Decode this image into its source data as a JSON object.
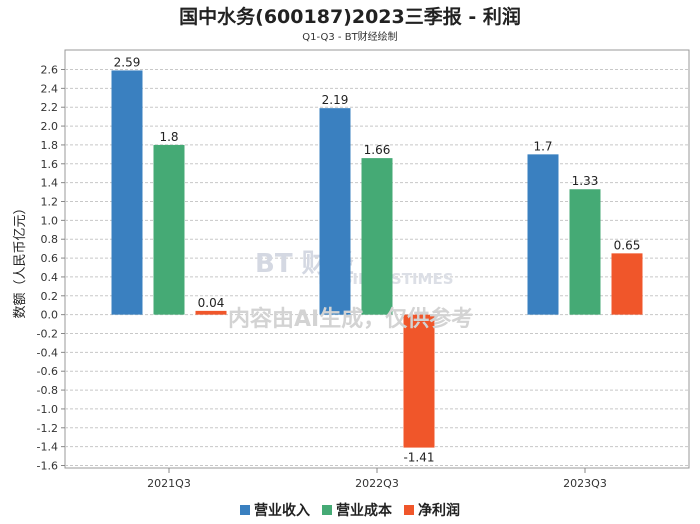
{
  "header": {
    "title": "国中水务(600187)2023三季报 - 利润",
    "subtitle": "Q1-Q3 - BT财经绘制"
  },
  "watermark": {
    "brand": "BT 财经",
    "brand_en": "BUSINESSTIMES",
    "notice": "内容由AI生成，仅供参考"
  },
  "chart_data": {
    "type": "bar",
    "categories": [
      "2021Q3",
      "2022Q3",
      "2023Q3"
    ],
    "series": [
      {
        "name": "营业收入",
        "color": "#3a80c0",
        "values": [
          2.59,
          2.19,
          1.7
        ]
      },
      {
        "name": "营业成本",
        "color": "#45aa75",
        "values": [
          1.8,
          1.66,
          1.33
        ]
      },
      {
        "name": "净利润",
        "color": "#f0562a",
        "values": [
          0.04,
          -1.41,
          0.65
        ]
      }
    ],
    "value_labels": [
      [
        "2.59",
        "1.8",
        "0.04"
      ],
      [
        "2.19",
        "1.66",
        "-1.41"
      ],
      [
        "1.7",
        "1.33",
        "0.65"
      ]
    ],
    "ylabel": "数额（人民币亿元）",
    "ylim": [
      -1.6,
      2.7
    ],
    "yticks": [
      "2.6",
      "2.4",
      "2.2",
      "2.0",
      "1.8",
      "1.6",
      "1.4",
      "1.2",
      "1.0",
      "0.8",
      "0.6",
      "0.4",
      "0.2",
      "0.0",
      "-0.2",
      "-0.4",
      "-0.6",
      "-0.8",
      "-1.0",
      "-1.2",
      "-1.4",
      "-1.6"
    ],
    "ytick_values": [
      2.6,
      2.4,
      2.2,
      2.0,
      1.8,
      1.6,
      1.4,
      1.2,
      1.0,
      0.8,
      0.6,
      0.4,
      0.2,
      0.0,
      -0.2,
      -0.4,
      -0.6,
      -0.8,
      -1.0,
      -1.2,
      -1.4,
      -1.6
    ],
    "grid": true,
    "legend_position": "bottom"
  }
}
